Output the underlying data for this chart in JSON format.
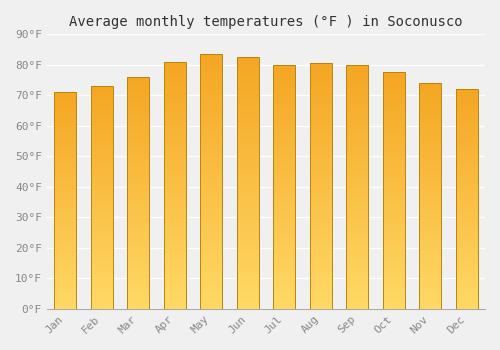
{
  "title": "Average monthly temperatures (°F ) in Soconusco",
  "months": [
    "Jan",
    "Feb",
    "Mar",
    "Apr",
    "May",
    "Jun",
    "Jul",
    "Aug",
    "Sep",
    "Oct",
    "Nov",
    "Dec"
  ],
  "values": [
    71,
    73,
    76,
    81,
    83.5,
    82.5,
    80,
    80.5,
    80,
    77.5,
    74,
    72
  ],
  "bar_color_bottom": "#F5A623",
  "bar_color_top": "#FFD966",
  "bar_edge_color": "#B8860B",
  "ylim": [
    0,
    90
  ],
  "yticks": [
    0,
    10,
    20,
    30,
    40,
    50,
    60,
    70,
    80,
    90
  ],
  "ytick_labels": [
    "0°F",
    "10°F",
    "20°F",
    "30°F",
    "40°F",
    "50°F",
    "60°F",
    "70°F",
    "80°F",
    "90°F"
  ],
  "background_color": "#f0f0f0",
  "grid_color": "#ffffff",
  "title_fontsize": 10,
  "tick_fontsize": 8,
  "font_family": "monospace"
}
